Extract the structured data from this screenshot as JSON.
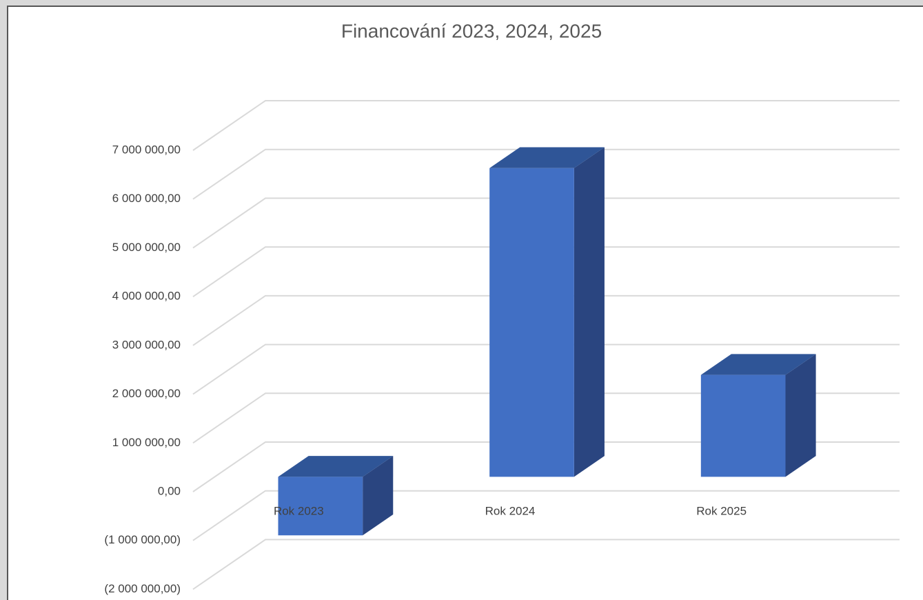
{
  "chart_data": {
    "type": "bar3d",
    "title": "Financování 2023, 2024, 2025",
    "categories": [
      "Rok 2023",
      "Rok 2024",
      "Rok 2025"
    ],
    "values": [
      -1200000,
      6330000,
      2090000
    ],
    "color": "#416fc4",
    "ylim": [
      -2000000,
      8000000
    ],
    "yticks": [
      {
        "value": -2000000,
        "label": "(2 000 000,00)"
      },
      {
        "value": -1000000,
        "label": "(1 000 000,00)"
      },
      {
        "value": 0,
        "label": "0,00"
      },
      {
        "value": 1000000,
        "label": "1 000 000,00"
      },
      {
        "value": 2000000,
        "label": "2 000 000,00"
      },
      {
        "value": 3000000,
        "label": "3 000 000,00"
      },
      {
        "value": 4000000,
        "label": "4 000 000,00"
      },
      {
        "value": 5000000,
        "label": "5 000 000,00"
      },
      {
        "value": 6000000,
        "label": "6 000 000,00"
      },
      {
        "value": 7000000,
        "label": "7 000 000,00"
      }
    ],
    "grid": true
  }
}
